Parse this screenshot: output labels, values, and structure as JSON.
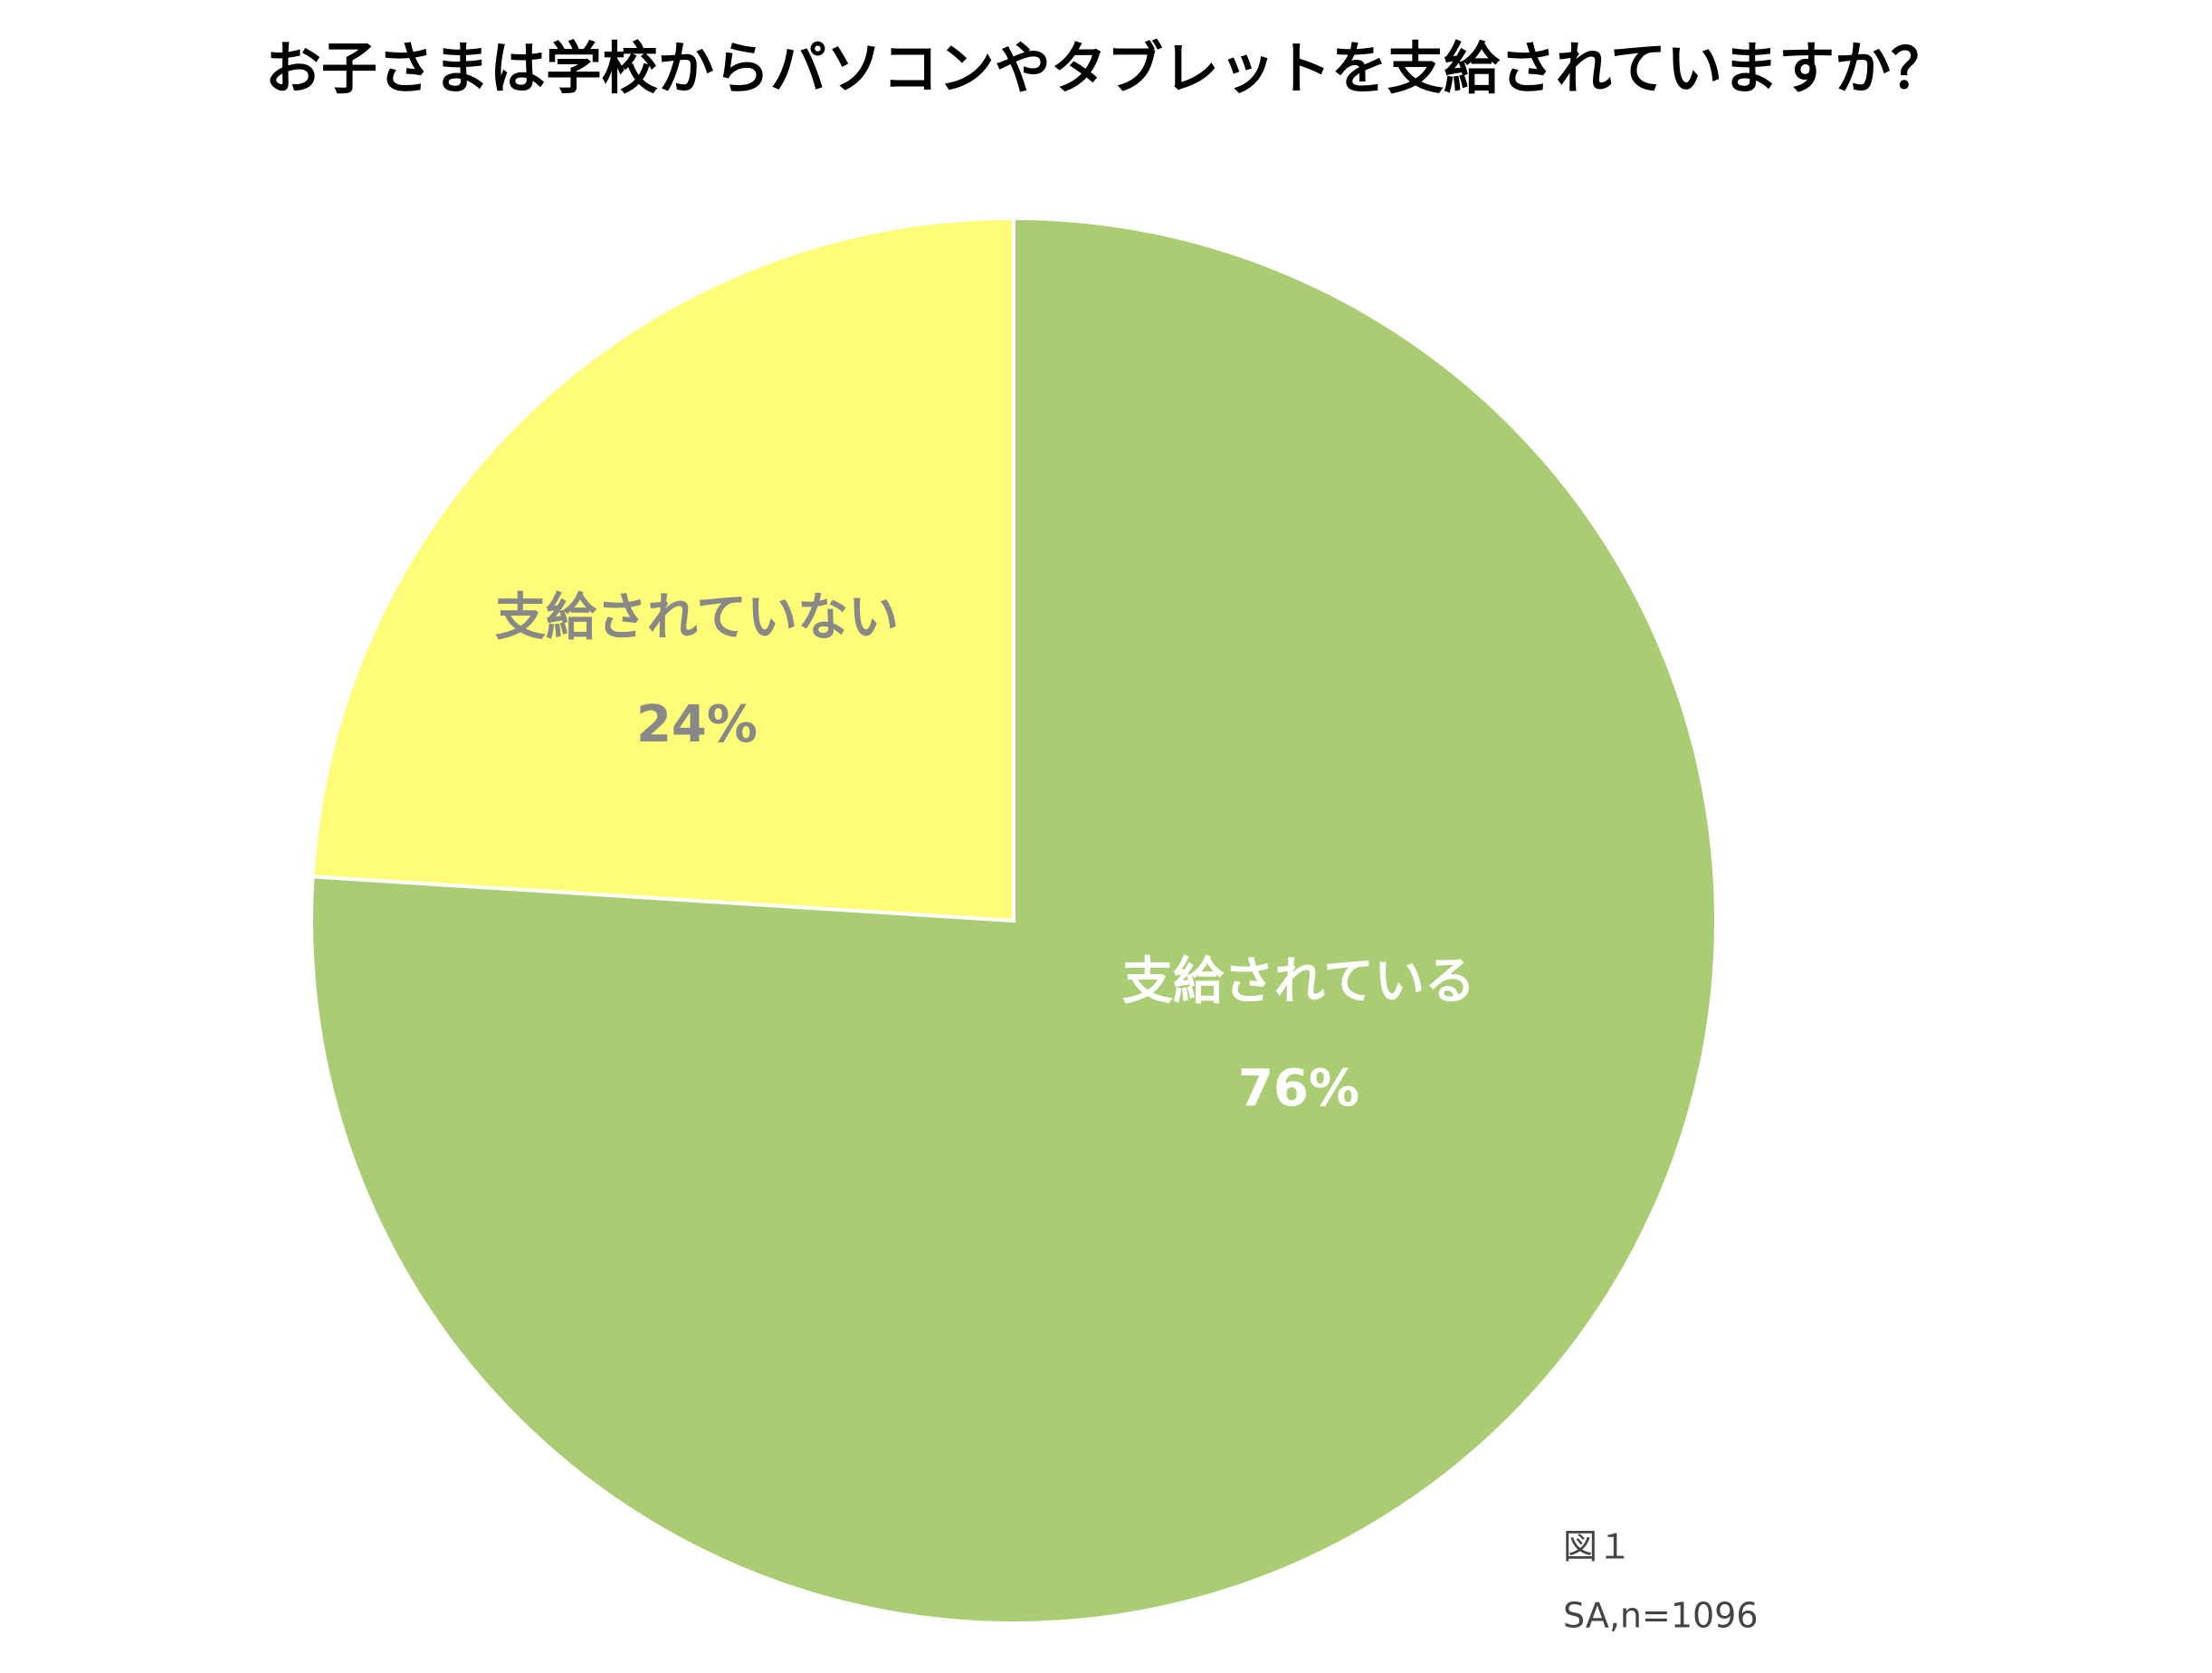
{
  "chart_data": {
    "type": "pie",
    "title": "お子さまは学校からパソコンやタブレットを支給されていますか？",
    "categories": [
      "支給されている",
      "支給されていない"
    ],
    "values": [
      76,
      24
    ],
    "value_labels": [
      "76%",
      "24%"
    ],
    "colors": [
      "#aacc72",
      "#fffd77"
    ],
    "notes": [
      "図１",
      "SA,n=1096"
    ]
  }
}
